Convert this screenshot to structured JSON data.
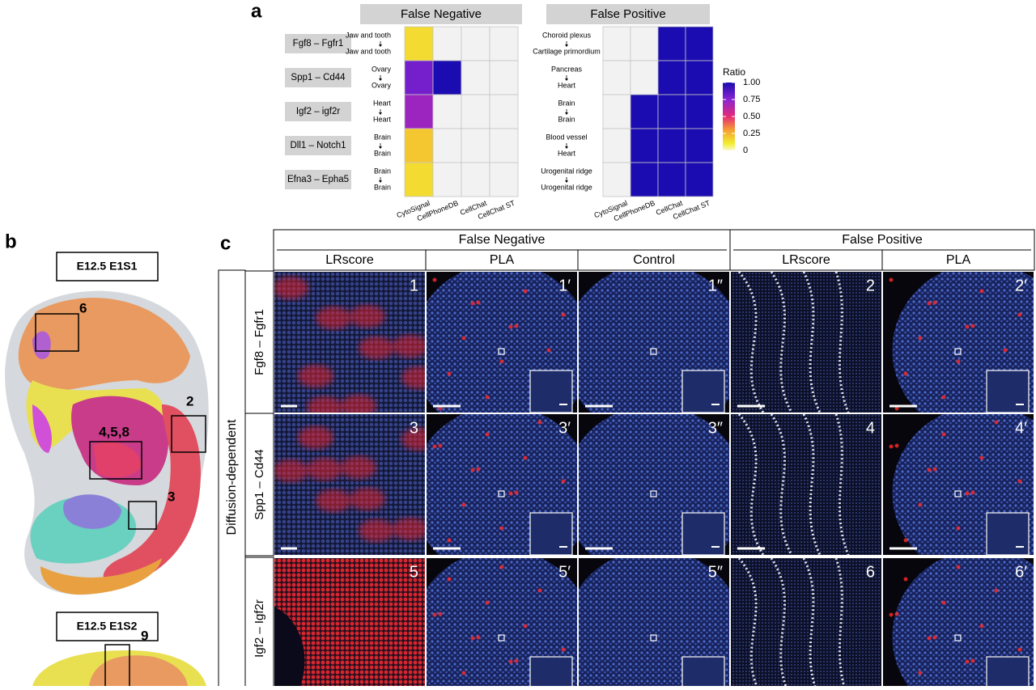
{
  "panel_a": {
    "label": "a",
    "heatmaps": [
      {
        "title": "False Negative",
        "columns": [
          "CytoSignal",
          "CellPhoneDB",
          "CellChat",
          "CellChat ST"
        ],
        "rows": [
          {
            "pair": "Fgf8 – Fgfr1",
            "source": "Jaw and tooth",
            "target": "Jaw and tooth",
            "values": [
              0.15,
              null,
              null,
              null
            ]
          },
          {
            "pair": "Spp1 – Cd44",
            "source": "Ovary",
            "target": "Ovary",
            "values": [
              0.8,
              1,
              null,
              null
            ]
          },
          {
            "pair": "Igf2 – igf2r",
            "source": "Heart",
            "target": "Heart",
            "values": [
              0.7,
              null,
              null,
              null
            ]
          },
          {
            "pair": "Dll1 – Notch1",
            "source": "Brain",
            "target": "Brain",
            "values": [
              0.2,
              null,
              null,
              null
            ]
          },
          {
            "pair": "Efna3 – Epha5",
            "source": "Brain",
            "target": "Brain",
            "values": [
              0.15,
              null,
              null,
              null
            ]
          }
        ]
      },
      {
        "title": "False Positive",
        "columns": [
          "CytoSignal",
          "CellPhoneDB",
          "CellChat",
          "CellChat ST"
        ],
        "rows": [
          {
            "source": "Choroid plexus",
            "target": "Cartilage primordium",
            "values": [
              null,
              null,
              1,
              1
            ]
          },
          {
            "source": "Pancreas",
            "target": "Heart",
            "values": [
              null,
              null,
              1,
              1
            ]
          },
          {
            "source": "Brain",
            "target": "Brain",
            "values": [
              null,
              1,
              1,
              1
            ]
          },
          {
            "source": "Blood vessel",
            "target": "Heart",
            "values": [
              null,
              1,
              1,
              1
            ]
          },
          {
            "source": "Urogenital ridge",
            "target": "Urogenital ridge",
            "values": [
              null,
              1,
              1,
              1
            ]
          }
        ]
      }
    ],
    "legend": {
      "title": "Ratio",
      "lim": [
        0,
        1
      ],
      "ticks": [
        {
          "value": 1,
          "label": "1.00"
        },
        0.75,
        {
          "value": 0.5,
          "label": "0.50"
        },
        0.25,
        0
      ]
    }
  },
  "panel_b": {
    "label": "b",
    "sections": [
      {
        "title": "E12.5 E1S1",
        "regions": [
          "6",
          "2",
          "4,5,8",
          "3"
        ]
      },
      {
        "title": "E12.5 E1S2",
        "regions": [
          "9"
        ]
      }
    ]
  },
  "panel_c": {
    "label": "c",
    "groups": [
      {
        "label": "False Negative",
        "columns": [
          "LRscore",
          "PLA",
          "Control"
        ]
      },
      {
        "label": "False Positive",
        "columns": [
          "LRscore",
          "PLA"
        ]
      }
    ],
    "row_group": "Diffusion-dependent",
    "rows": [
      {
        "pair": "Fgf8 – Fgfr1",
        "tiles": [
          "1",
          "1′",
          "1″",
          "2",
          "2′"
        ]
      },
      {
        "pair": "Spp1 – Cd44",
        "tiles": [
          "3",
          "3′",
          "3″",
          "4",
          "4′"
        ]
      },
      {
        "pair": "Igf2 – Igf2r",
        "tiles": [
          "5",
          "5′",
          "5″",
          "6",
          "6′"
        ]
      }
    ]
  }
}
